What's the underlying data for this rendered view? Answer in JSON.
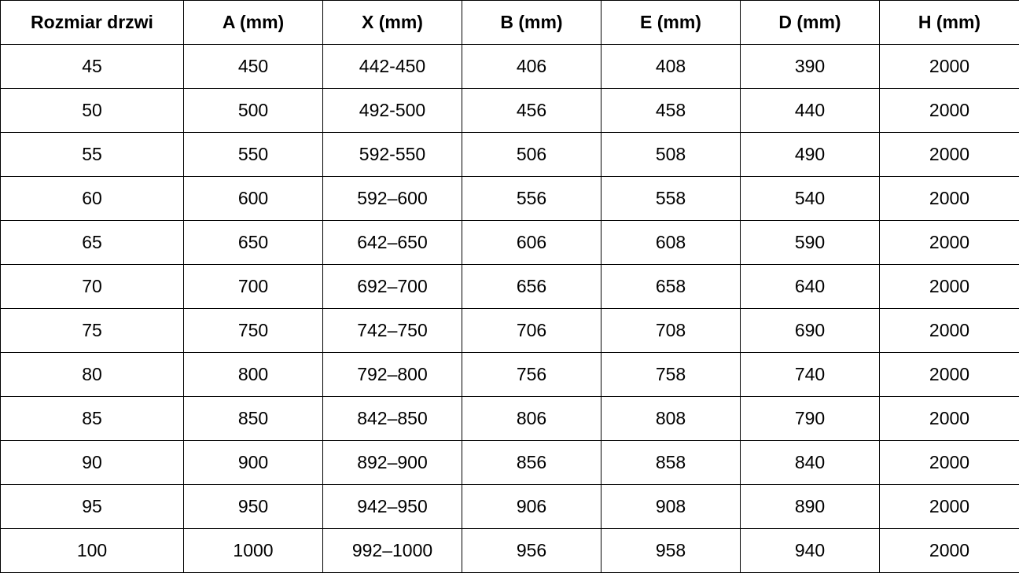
{
  "table": {
    "header": [
      "Rozmiar drzwi",
      "A (mm)",
      "X (mm)",
      "B (mm)",
      "E (mm)",
      "D (mm)",
      "H (mm)"
    ],
    "rows": [
      [
        45,
        450,
        "442-450",
        406,
        408,
        390,
        2000
      ],
      [
        50,
        500,
        "492-500",
        456,
        458,
        440,
        2000
      ],
      [
        55,
        550,
        "592-550",
        506,
        508,
        490,
        2000
      ],
      [
        60,
        600,
        "592–600",
        556,
        558,
        540,
        2000
      ],
      [
        65,
        650,
        "642–650",
        606,
        608,
        590,
        2000
      ],
      [
        70,
        700,
        "692–700",
        656,
        658,
        640,
        2000
      ],
      [
        75,
        750,
        "742–750",
        706,
        708,
        690,
        2000
      ],
      [
        80,
        800,
        "792–800",
        756,
        758,
        740,
        2000
      ],
      [
        85,
        850,
        "842–850",
        806,
        808,
        790,
        2000
      ],
      [
        90,
        900,
        "892–900",
        856,
        858,
        840,
        2000
      ],
      [
        95,
        950,
        "942–950",
        906,
        908,
        890,
        2000
      ],
      [
        100,
        1000,
        "992–1000",
        956,
        958,
        940,
        2000
      ]
    ]
  }
}
